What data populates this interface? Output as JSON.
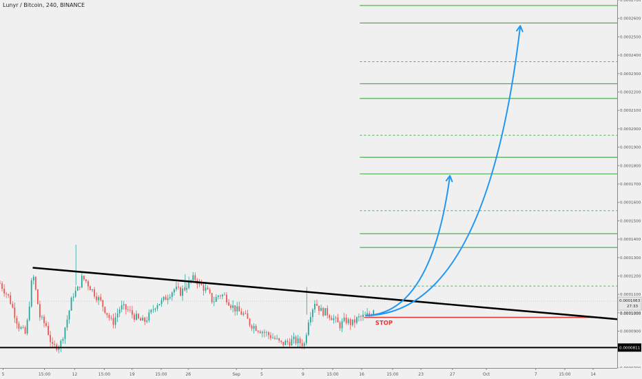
{
  "chart_data": {
    "type": "candlestick",
    "title": "Lunyr / Bitcoin, 240, BINANCE",
    "symbol": "Lunyr / Bitcoin",
    "interval": "240",
    "exchange": "BINANCE",
    "y_range": [
      7e-05,
      0.00027
    ],
    "x_range": [
      0,
      100
    ],
    "y_ticks": [
      "0.0000700",
      "0.0000800",
      "0.0000900",
      "0.0001000",
      "0.0001100",
      "0.0001200",
      "0.0001300",
      "0.0001400",
      "0.0001500",
      "0.0001600",
      "0.0001700",
      "0.0001800",
      "0.0001900",
      "0.0002000",
      "0.0002100",
      "0.0002200",
      "0.0002300",
      "0.0002400",
      "0.0002500",
      "0.0002600",
      "0.0002700"
    ],
    "x_ticks": [
      {
        "label": "5",
        "x": 0.5
      },
      {
        "label": "15:00",
        "x": 7.2
      },
      {
        "label": "12",
        "x": 12.1
      },
      {
        "label": "15:00",
        "x": 16.9
      },
      {
        "label": "19",
        "x": 21.4
      },
      {
        "label": "15:00",
        "x": 26.1
      },
      {
        "label": "26",
        "x": 30.5
      },
      {
        "label": "Sep",
        "x": 38.3
      },
      {
        "label": "5",
        "x": 42.4
      },
      {
        "label": "9",
        "x": 49.1
      },
      {
        "label": "15:00",
        "x": 53.9
      },
      {
        "label": "16",
        "x": 58.6
      },
      {
        "label": "15:00",
        "x": 63.6
      },
      {
        "label": "23",
        "x": 68.2
      },
      {
        "label": "27",
        "x": 73.3
      },
      {
        "label": "Oct",
        "x": 78.8
      },
      {
        "label": "7",
        "x": 86.8
      },
      {
        "label": "15:00",
        "x": 91.5
      },
      {
        "label": "14",
        "x": 96.1
      }
    ],
    "last_price": "0.0001063",
    "countdown": "27:33",
    "last_price_small": "0.0001000",
    "support_label": "0.0000811",
    "support_level": 8.11e-05,
    "stop_label": "STOP",
    "stop_level": 9.75e-05,
    "trendline": [
      {
        "x": 5.3,
        "y": 0.0001245
      },
      {
        "x": 100,
        "y": 9.65e-05
      }
    ],
    "target_levels": [
      {
        "value": 0.000267,
        "style": "solid"
      },
      {
        "value": 0.0002575,
        "style": "solid"
      },
      {
        "value": 0.0002365,
        "style": "dashed"
      },
      {
        "value": 0.0002245,
        "style": "solid"
      },
      {
        "value": 0.0002165,
        "style": "solid"
      },
      {
        "value": 0.0001965,
        "style": "dashed"
      },
      {
        "value": 0.0001845,
        "style": "solid"
      },
      {
        "value": 0.0001755,
        "style": "solid"
      },
      {
        "value": 0.0001555,
        "style": "dashed"
      },
      {
        "value": 0.000143,
        "style": "solid"
      },
      {
        "value": 0.0001355,
        "style": "solid"
      },
      {
        "value": 0.0001145,
        "style": "dashed"
      }
    ],
    "targets_x_range": [
      58.3,
      100
    ],
    "arrows": [
      {
        "from": {
          "x": 59.2,
          "y": 9.85e-05
        },
        "to": {
          "x": 72.9,
          "y": 0.0001745
        }
      },
      {
        "from": {
          "x": 59.2,
          "y": 9.85e-05
        },
        "to": {
          "x": 84.3,
          "y": 0.000256
        }
      }
    ],
    "price_points": [
      [
        0,
        0.000116
      ],
      [
        1.5,
        0.000108
      ],
      [
        3,
        9.3e-05
      ],
      [
        4.2,
        8.8e-05
      ],
      [
        5.3,
        0.000122
      ],
      [
        6.5,
        9.7e-05
      ],
      [
        7.5,
        9.3e-05
      ],
      [
        8.5,
        8.1e-05
      ],
      [
        9.8,
        8.3e-05
      ],
      [
        11,
        9.8e-05
      ],
      [
        11.8,
        0.00011
      ],
      [
        12.5,
        0.000112
      ],
      [
        13.3,
        0.000119
      ],
      [
        14,
        0.000117
      ],
      [
        15,
        0.000112
      ],
      [
        16.3,
        0.000106
      ],
      [
        17.3,
        0.0001
      ],
      [
        18.2,
        9.4e-05
      ],
      [
        19.5,
        0.000103
      ],
      [
        20.5,
        0.000102
      ],
      [
        21.5,
        9.9e-05
      ],
      [
        22.5,
        9.6e-05
      ],
      [
        23.3,
        9.5e-05
      ],
      [
        24.3,
        9.9e-05
      ],
      [
        25.3,
        0.000105
      ],
      [
        26.3,
        0.000106
      ],
      [
        27.3,
        0.00011
      ],
      [
        28.3,
        0.000113
      ],
      [
        29.3,
        0.000111
      ],
      [
        30.5,
        0.000116
      ],
      [
        31.5,
        0.000119
      ],
      [
        32.5,
        0.000115
      ],
      [
        33.5,
        0.000112
      ],
      [
        34.5,
        0.000106
      ],
      [
        35.5,
        0.00011
      ],
      [
        36.5,
        0.000109
      ],
      [
        37.5,
        0.000104
      ],
      [
        38.5,
        0.000101
      ],
      [
        39.5,
        9.9e-05
      ],
      [
        40.5,
        9.4e-05
      ],
      [
        41.5,
        9.2e-05
      ],
      [
        42.5,
        9e-05
      ],
      [
        43.5,
        8.8e-05
      ],
      [
        44.5,
        8.6e-05
      ],
      [
        45.5,
        8.3e-05
      ],
      [
        46.5,
        8.4e-05
      ],
      [
        47.5,
        8.5e-05
      ],
      [
        48.5,
        8.4e-05
      ],
      [
        49.3,
        8.3e-05
      ],
      [
        50,
        9.7e-05
      ],
      [
        51,
        0.000106
      ],
      [
        52,
        0.000101
      ],
      [
        53,
        0.0001
      ],
      [
        54,
        9.7e-05
      ],
      [
        55,
        9.3e-05
      ],
      [
        56,
        9.6e-05
      ],
      [
        57,
        9.4e-05
      ],
      [
        58,
        9.7e-05
      ],
      [
        59,
        9.8e-05
      ],
      [
        60,
        9.9e-05
      ],
      [
        60.6,
        0.000103
      ]
    ]
  }
}
